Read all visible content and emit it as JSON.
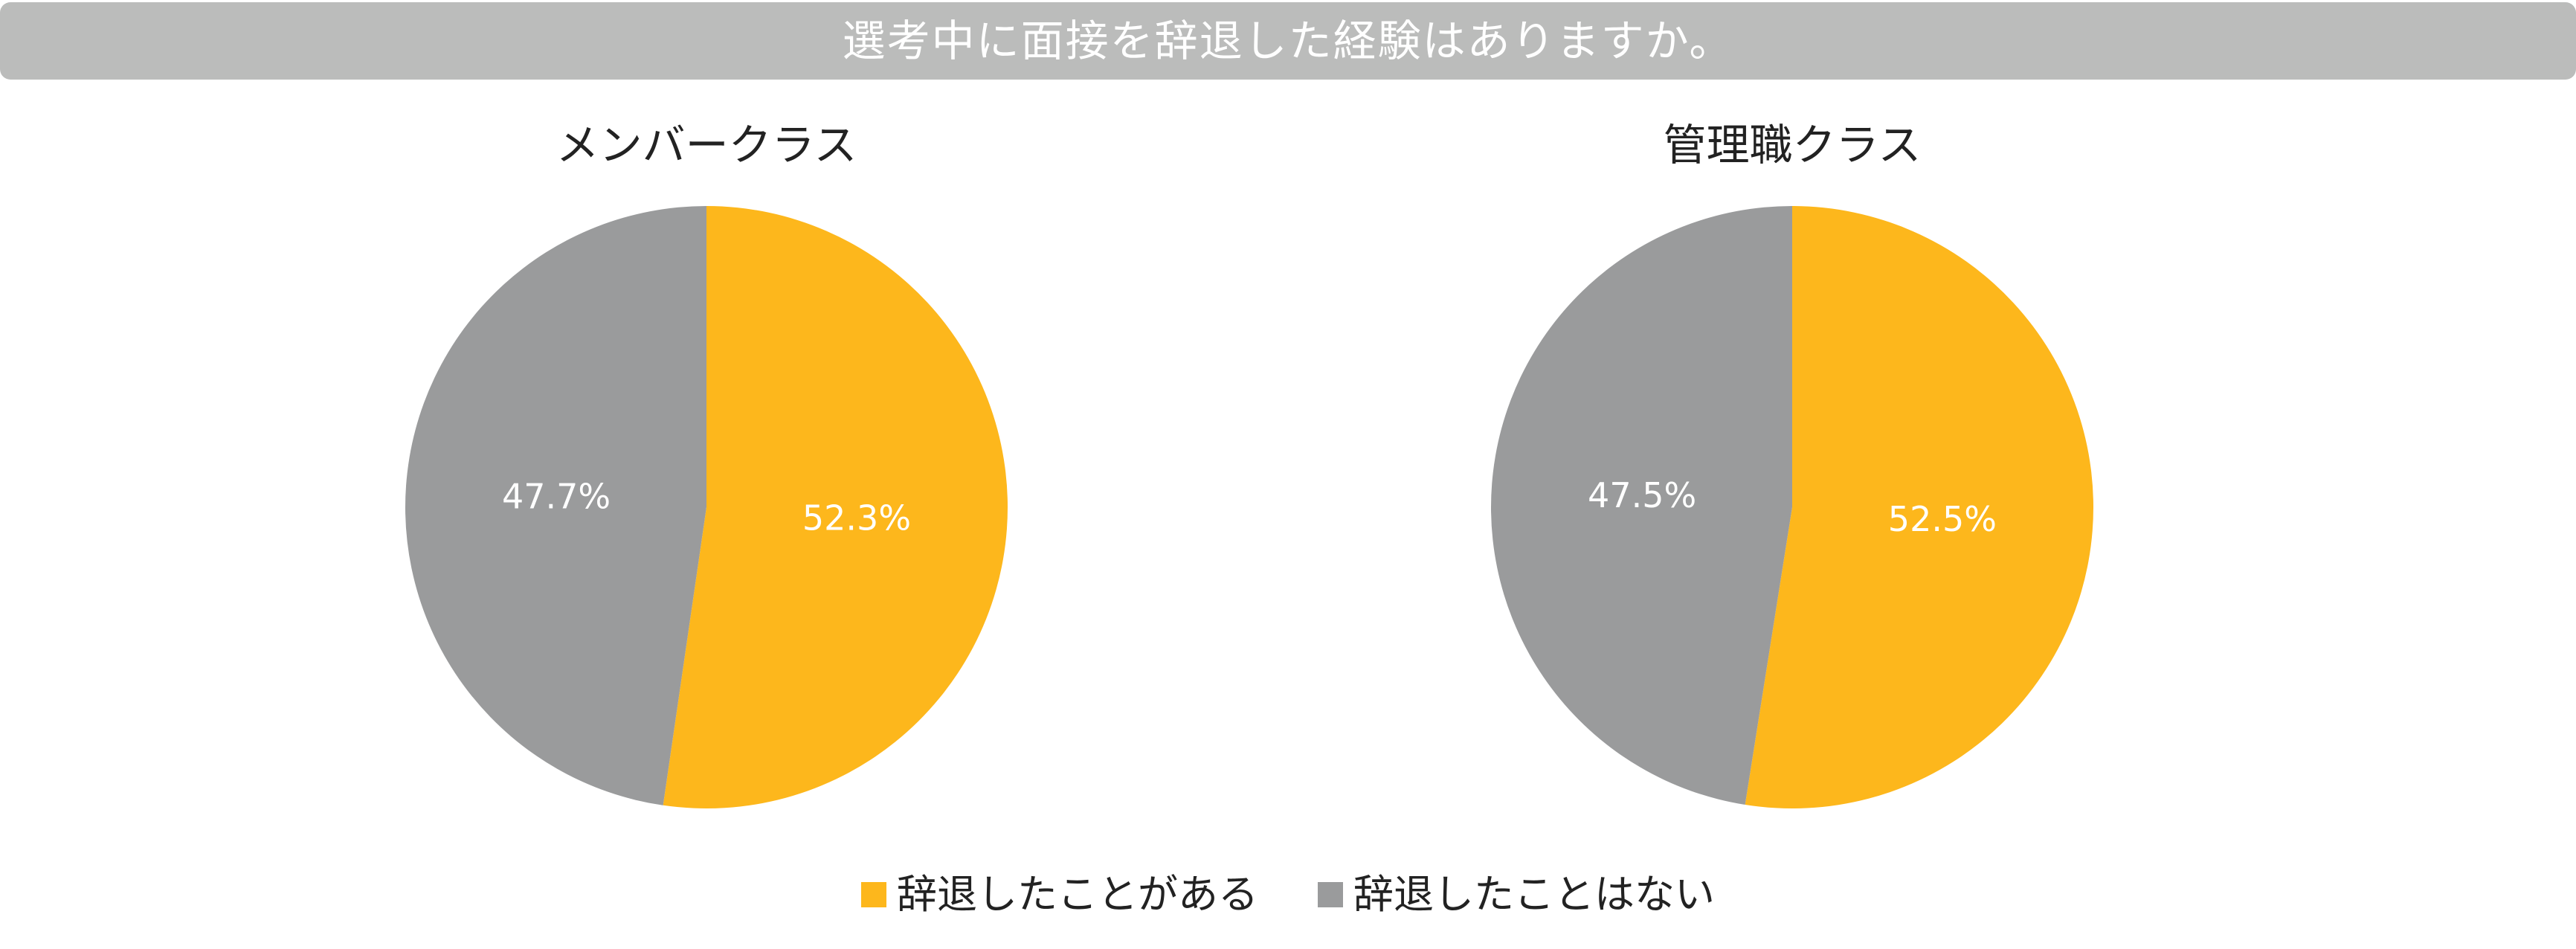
{
  "header": {
    "title": "選考中に面接を辞退した経験はありますか。"
  },
  "colors": {
    "header_bg": "#bbbcbb",
    "series_yes": "#fdb71c",
    "series_no": "#9a9b9c",
    "label_text": "#ffffff"
  },
  "chart_data": [
    {
      "type": "pie",
      "title": "メンバークラス",
      "start": "12 o'clock",
      "direction": "clockwise",
      "slices": [
        {
          "name": "辞退したことがある",
          "value": 52.3,
          "label": "52.3%",
          "color": "#fdb71c"
        },
        {
          "name": "辞退したことはない",
          "value": 47.7,
          "label": "47.7%",
          "color": "#9a9b9c"
        }
      ]
    },
    {
      "type": "pie",
      "title": "管理職クラス",
      "start": "12 o'clock",
      "direction": "clockwise",
      "slices": [
        {
          "name": "辞退したことがある",
          "value": 52.5,
          "label": "52.5%",
          "color": "#fdb71c"
        },
        {
          "name": "辞退したことはない",
          "value": 47.5,
          "label": "47.5%",
          "color": "#9a9b9c"
        }
      ]
    }
  ],
  "legend": {
    "position": "bottom",
    "items": [
      {
        "label": "辞退したことがある",
        "color": "#fdb71c"
      },
      {
        "label": "辞退したことはない",
        "color": "#9a9b9c"
      }
    ]
  }
}
